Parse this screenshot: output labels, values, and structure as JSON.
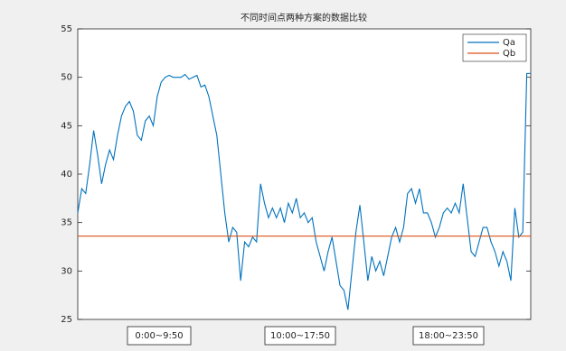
{
  "chart_data": {
    "type": "line",
    "title": "不同时间点两种方案的数据比较",
    "series": [
      {
        "name": "Qa",
        "color": "#0072bd",
        "values": [
          36,
          38.5,
          38,
          41,
          44.5,
          42,
          39,
          41,
          42.5,
          41.5,
          44,
          46,
          47,
          47.5,
          46.5,
          44,
          43.5,
          45.5,
          46,
          45,
          48,
          49.5,
          50,
          50.2,
          50,
          50,
          50,
          50.3,
          49.8,
          50,
          50.2,
          49,
          49.2,
          48,
          46,
          44,
          40,
          36,
          33,
          34.5,
          34,
          29,
          33,
          32.5,
          33.5,
          33,
          39,
          37,
          35.5,
          36.5,
          35.5,
          36.5,
          35,
          37,
          36,
          37.5,
          35.5,
          36,
          35,
          35.5,
          33,
          31.5,
          30,
          32,
          33.5,
          31,
          28.5,
          28,
          26,
          30,
          34,
          36.8,
          33,
          29,
          31.5,
          30,
          31,
          29.5,
          31.5,
          33.5,
          34.5,
          33,
          34.5,
          38,
          38.5,
          37,
          38.5,
          36,
          36,
          35,
          33.5,
          34.5,
          36,
          36.5,
          36,
          37,
          36,
          39,
          35.5,
          32,
          31.5,
          33,
          34.5,
          34.5,
          33,
          32,
          30.5,
          32,
          31,
          29,
          36.5,
          33.5,
          34,
          50.4,
          50.4
        ]
      },
      {
        "name": "Qb",
        "color": "#d95319",
        "values": [
          33.6,
          33.6
        ]
      }
    ],
    "ylim": [
      25,
      55
    ],
    "yticks": [
      25,
      30,
      35,
      40,
      45,
      50,
      55
    ],
    "legend": "top-right",
    "annotations": [
      "0:00~9:50",
      "10:00~17:50",
      "18:00~23:50"
    ]
  }
}
